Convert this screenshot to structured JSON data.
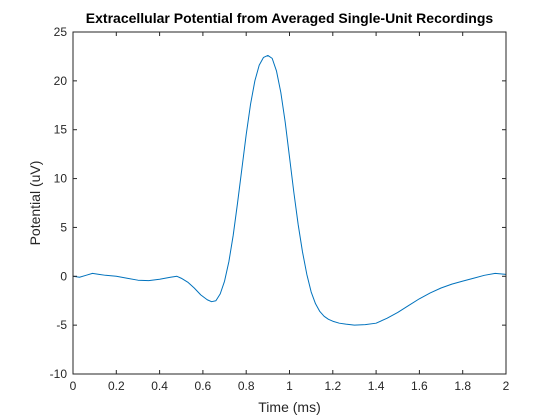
{
  "chart_data": {
    "type": "line",
    "title": "Extracellular Potential from Averaged Single-Unit Recordings",
    "xlabel": "Time (ms)",
    "ylabel": "Potential (uV)",
    "xlim": [
      0,
      2
    ],
    "ylim": [
      -10,
      25
    ],
    "xticks": [
      0,
      0.2,
      0.4,
      0.6,
      0.8,
      1,
      1.2,
      1.4,
      1.6,
      1.8,
      2
    ],
    "xtick_labels": [
      "0",
      "0.2",
      "0.4",
      "0.6",
      "0.8",
      "1",
      "1.2",
      "1.4",
      "1.6",
      "1.8",
      "2"
    ],
    "yticks": [
      -10,
      -5,
      0,
      5,
      10,
      15,
      20,
      25
    ],
    "ytick_labels": [
      "-10",
      "-5",
      "0",
      "5",
      "10",
      "15",
      "20",
      "25"
    ],
    "grid": false,
    "series": [
      {
        "color": "#0072BD",
        "x": [
          0,
          0.03,
          0.06,
          0.09,
          0.12,
          0.15,
          0.2,
          0.25,
          0.3,
          0.35,
          0.4,
          0.45,
          0.48,
          0.5,
          0.53,
          0.56,
          0.59,
          0.62,
          0.64,
          0.66,
          0.68,
          0.7,
          0.72,
          0.74,
          0.76,
          0.78,
          0.8,
          0.82,
          0.84,
          0.86,
          0.88,
          0.9,
          0.92,
          0.94,
          0.96,
          0.98,
          1.0,
          1.02,
          1.04,
          1.06,
          1.08,
          1.1,
          1.12,
          1.14,
          1.16,
          1.18,
          1.2,
          1.23,
          1.26,
          1.3,
          1.35,
          1.4,
          1.45,
          1.5,
          1.55,
          1.6,
          1.65,
          1.7,
          1.75,
          1.8,
          1.85,
          1.9,
          1.95,
          2.0
        ],
        "y": [
          0.0,
          -0.1,
          0.1,
          0.3,
          0.2,
          0.1,
          0.0,
          -0.2,
          -0.4,
          -0.45,
          -0.3,
          -0.1,
          0.0,
          -0.2,
          -0.6,
          -1.2,
          -1.9,
          -2.4,
          -2.6,
          -2.5,
          -1.8,
          -0.5,
          1.5,
          4.2,
          7.5,
          11.0,
          14.5,
          17.6,
          20.0,
          21.6,
          22.4,
          22.6,
          22.3,
          21.0,
          18.8,
          15.8,
          12.2,
          8.6,
          5.3,
          2.5,
          0.2,
          -1.6,
          -2.8,
          -3.6,
          -4.1,
          -4.4,
          -4.6,
          -4.8,
          -4.9,
          -5.0,
          -4.95,
          -4.8,
          -4.3,
          -3.7,
          -3.0,
          -2.3,
          -1.7,
          -1.2,
          -0.8,
          -0.5,
          -0.2,
          0.1,
          0.3,
          0.2
        ]
      }
    ]
  }
}
